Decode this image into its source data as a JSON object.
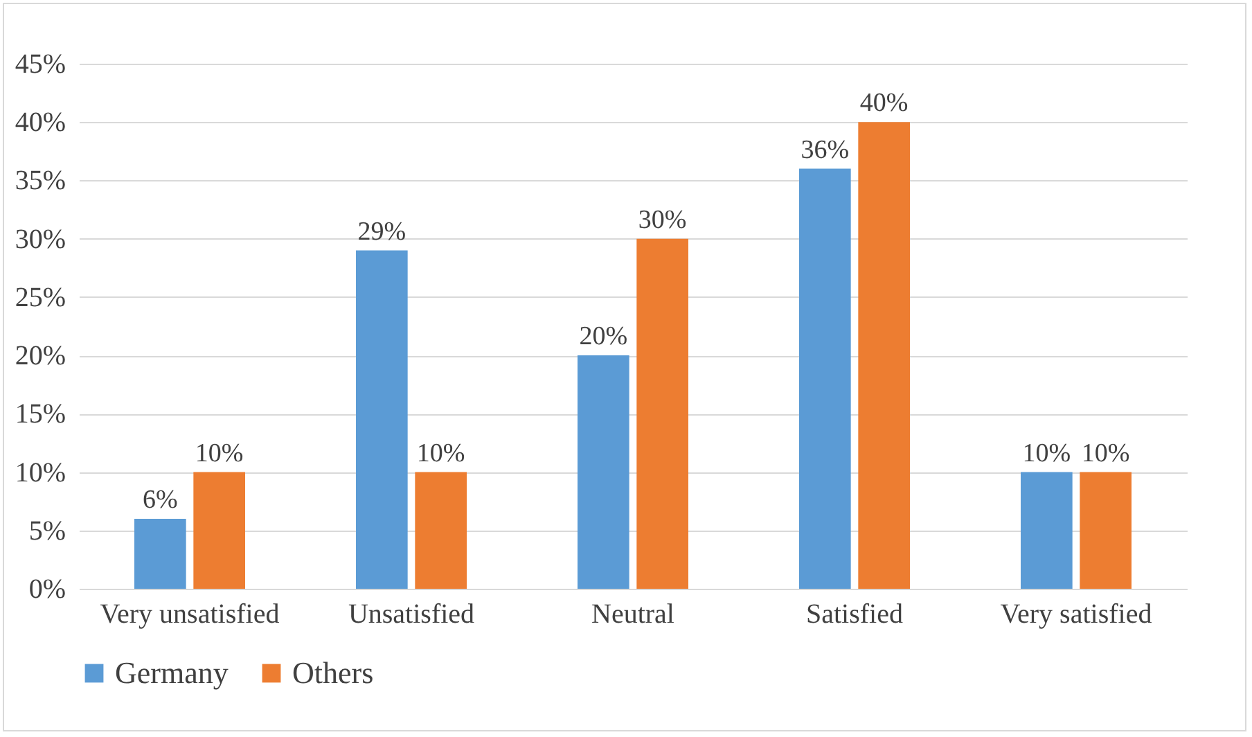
{
  "chart_data": {
    "type": "bar",
    "categories": [
      "Very unsatisfied",
      "Unsatisfied",
      "Neutral",
      "Satisfied",
      "Very satisfied"
    ],
    "series": [
      {
        "name": "Germany",
        "color": "#5b9bd5",
        "values": [
          6,
          29,
          20,
          36,
          10
        ],
        "value_labels": [
          "6%",
          "29%",
          "20%",
          "36%",
          "10%"
        ]
      },
      {
        "name": "Others",
        "color": "#ed7d31",
        "values": [
          10,
          10,
          30,
          40,
          10
        ],
        "value_labels": [
          "10%",
          "10%",
          "30%",
          "40%",
          "10%"
        ]
      }
    ],
    "ylim": [
      0,
      45
    ],
    "yticks": [
      {
        "value": 0,
        "label": "0%"
      },
      {
        "value": 5,
        "label": "5%"
      },
      {
        "value": 10,
        "label": "10%"
      },
      {
        "value": 15,
        "label": "15%"
      },
      {
        "value": 20,
        "label": "20%"
      },
      {
        "value": 25,
        "label": "25%"
      },
      {
        "value": 30,
        "label": "30%"
      },
      {
        "value": 35,
        "label": "35%"
      },
      {
        "value": 40,
        "label": "40%"
      },
      {
        "value": 45,
        "label": "45%"
      }
    ],
    "grid": "y",
    "legend": "bottom"
  }
}
